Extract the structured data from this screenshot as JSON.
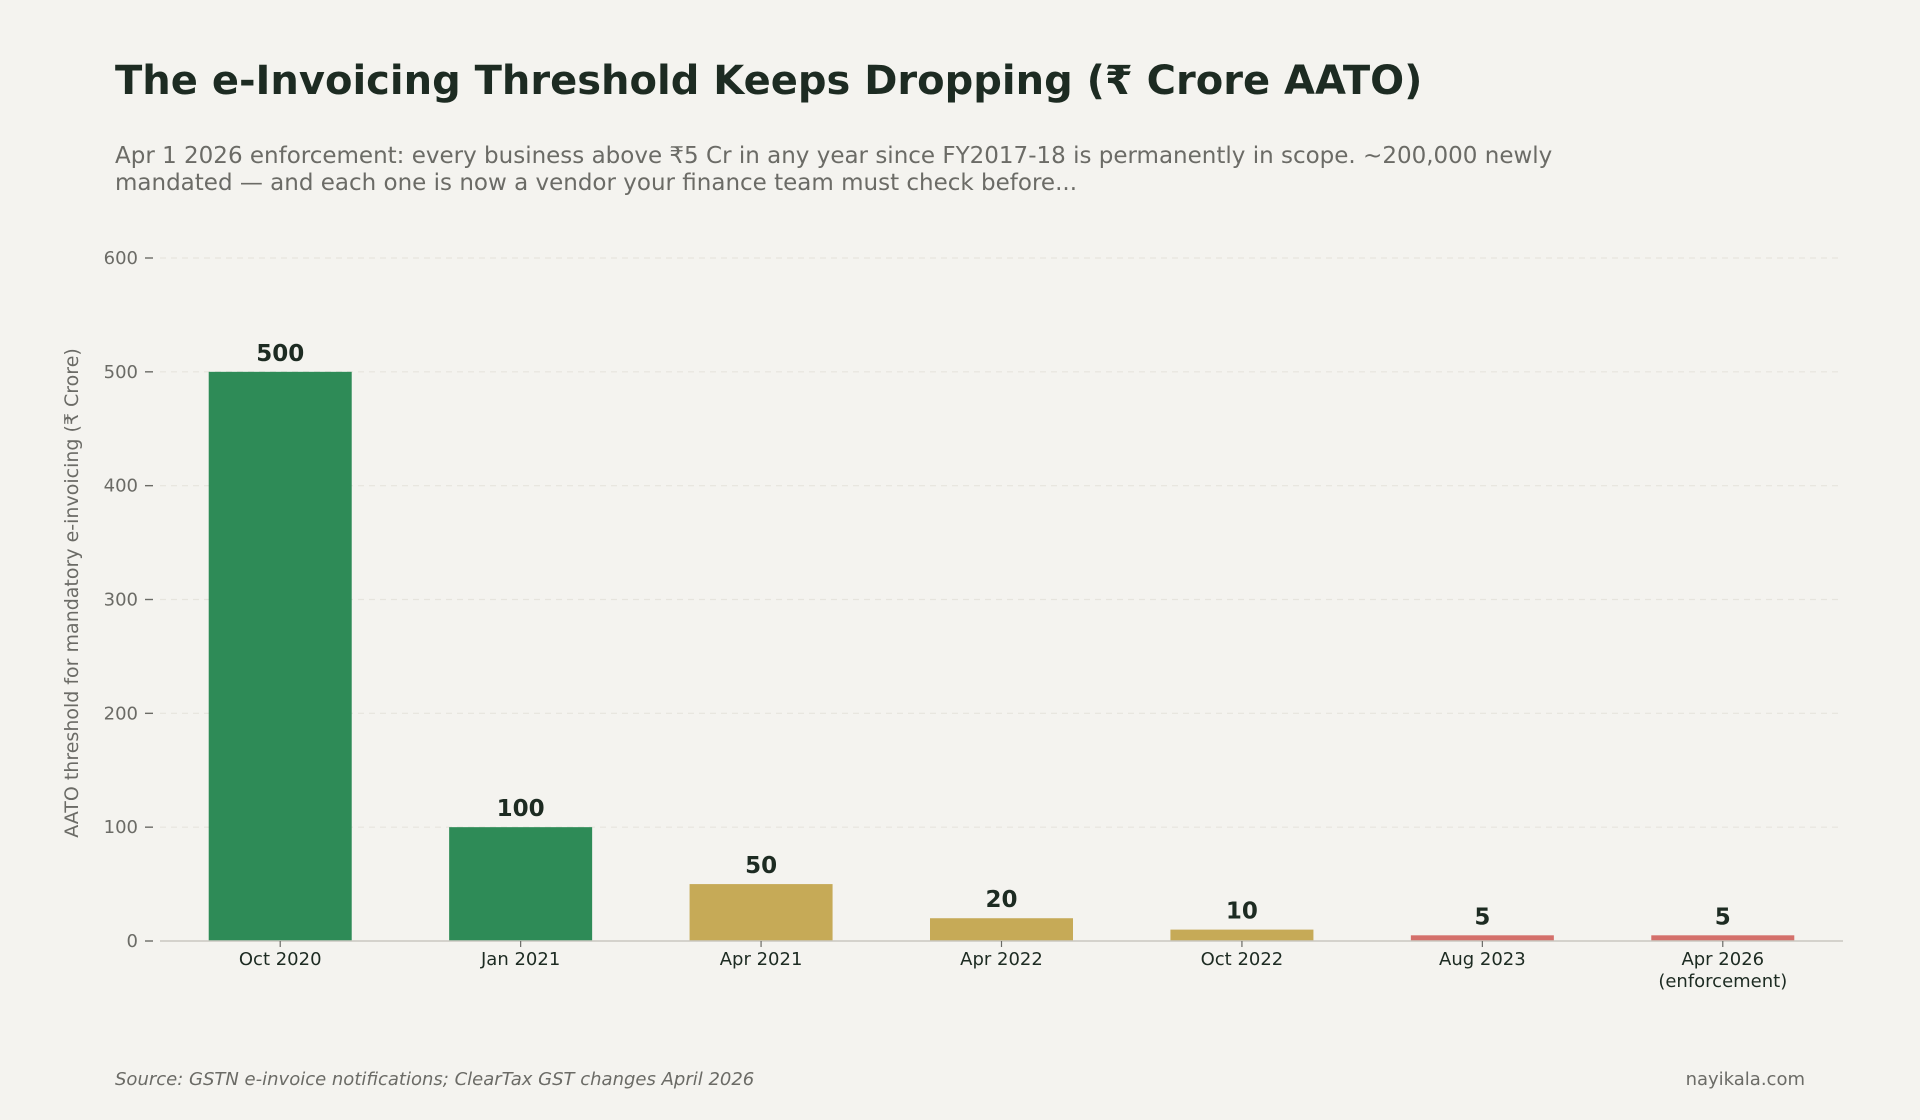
{
  "title": "The e-Invoicing Threshold Keeps Dropping (₹ Crore AATO)",
  "subtitle": "Apr 1 2026 enforcement: every business above ₹5 Cr in any year since FY2017-18 is permanently in scope. ~200,000 newly mandated — and each one is now a vendor your finance team must check before...",
  "source": "Source: GSTN e-invoice notifications; ClearTax GST changes April 2026",
  "brand": "nayikala.com",
  "chart_data": {
    "type": "bar",
    "categories": [
      "Oct 2020",
      "Jan 2021",
      "Apr 2021",
      "Apr 2022",
      "Oct 2022",
      "Aug 2023",
      "Apr 2026\n(enforcement)"
    ],
    "values": [
      500,
      100,
      50,
      20,
      10,
      5,
      5
    ],
    "data_labels": [
      "500",
      "100",
      "50",
      "20",
      "10",
      "5",
      "5"
    ],
    "bar_colors": [
      "#2e8b57",
      "#2e8b57",
      "#c6aa57",
      "#c6aa57",
      "#c6aa57",
      "#d4706b",
      "#d4706b"
    ],
    "xlabel": "",
    "ylabel": "AATO threshold for mandatory e-invoicing (₹ Crore)",
    "ylim": [
      0,
      600
    ],
    "yticks": [
      0,
      100,
      200,
      300,
      400,
      500,
      600
    ],
    "grid": true,
    "legend": "none"
  },
  "colors": {
    "background": "#f4f3ef",
    "title": "#1d2b22",
    "muted_text": "#6b6b66",
    "grid": "#e6e4dd",
    "axis": "#c9c7c0"
  }
}
